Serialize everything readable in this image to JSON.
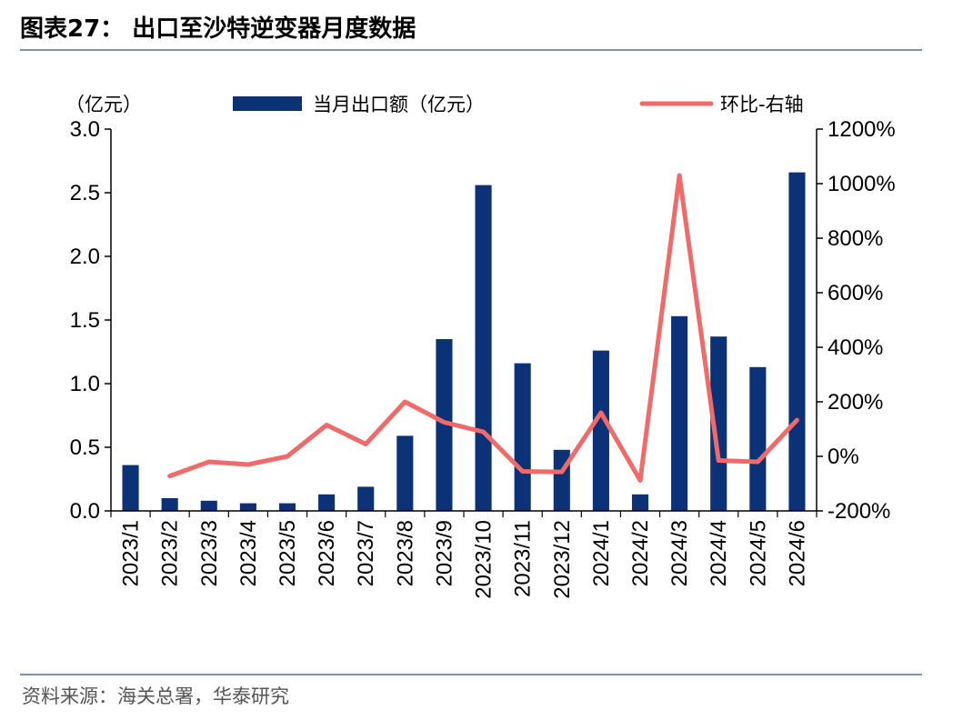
{
  "header": {
    "title": "图表27：  出口至沙特逆变器月度数据"
  },
  "footer": {
    "source": "资料来源：海关总署，华泰研究"
  },
  "colors": {
    "bar": "#0b3277",
    "line": "#f06a6a",
    "axis": "#000000",
    "rule": "#7a93b5"
  },
  "chart_data": {
    "type": "bar",
    "categories": [
      "2023/1",
      "2023/2",
      "2023/3",
      "2023/4",
      "2023/5",
      "2023/6",
      "2023/7",
      "2023/8",
      "2023/9",
      "2023/10",
      "2023/11",
      "2023/12",
      "2024/1",
      "2024/2",
      "2024/3",
      "2024/4",
      "2024/5",
      "2024/6"
    ],
    "y_left_label": "（亿元）",
    "y_left_ticks": [
      "0.0",
      "0.5",
      "1.0",
      "1.5",
      "2.0",
      "2.5",
      "3.0"
    ],
    "y_left_range": [
      0,
      3
    ],
    "y_right_ticks": [
      "-200%",
      "0%",
      "200%",
      "400%",
      "600%",
      "800%",
      "1000%",
      "1200%"
    ],
    "y_right_range": [
      -200,
      1200
    ],
    "legend_placement": "top",
    "series": [
      {
        "name": "当月出口额（亿元）",
        "type": "bar",
        "axis": "left",
        "values": [
          0.36,
          0.1,
          0.08,
          0.06,
          0.06,
          0.13,
          0.19,
          0.59,
          1.35,
          2.56,
          1.16,
          0.48,
          1.26,
          0.13,
          1.53,
          1.37,
          1.13,
          2.66
        ]
      },
      {
        "name": "环比-右轴",
        "type": "line",
        "axis": "right",
        "values": [
          null,
          -72,
          -20,
          -30,
          0,
          115,
          45,
          200,
          125,
          90,
          -55,
          -57,
          160,
          -88,
          1030,
          -15,
          -20,
          133
        ]
      }
    ]
  }
}
